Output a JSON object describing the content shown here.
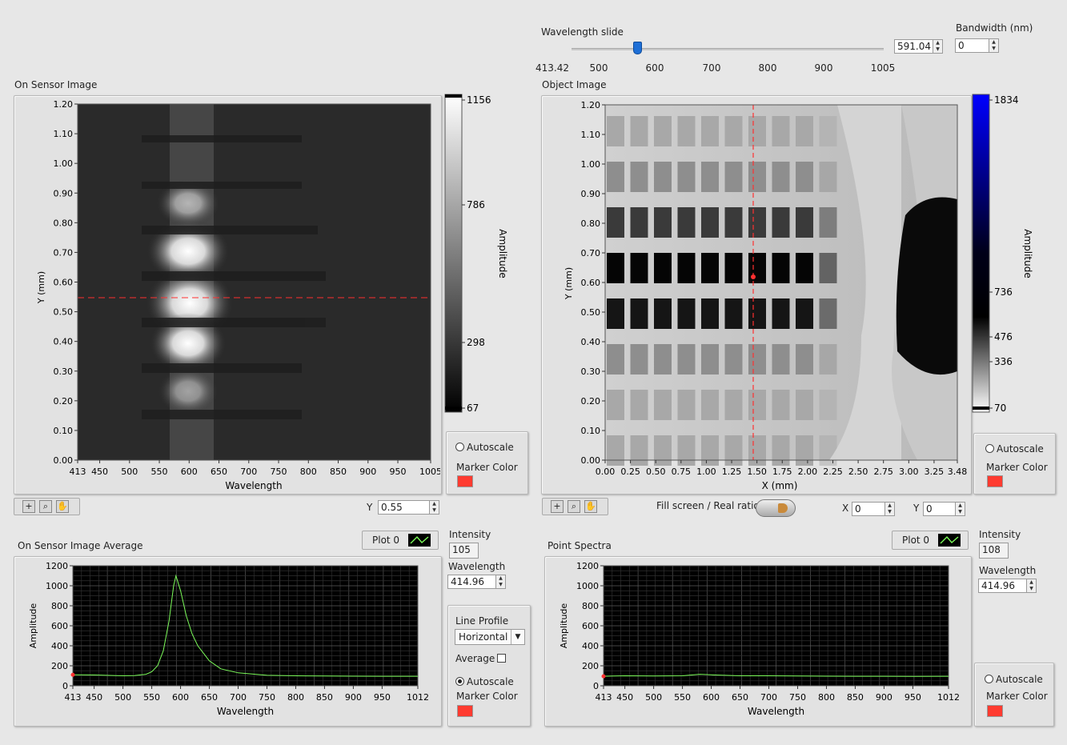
{
  "wavelength_slide": {
    "label": "Wavelength slide",
    "value": "591.04",
    "fraction": 0.21,
    "ticks": [
      "413.42",
      "500",
      "600",
      "700",
      "800",
      "900",
      "1005"
    ]
  },
  "bandwidth": {
    "label": "Bandwidth (nm)",
    "value": "0"
  },
  "sensor_image": {
    "title": "On Sensor Image",
    "ylabel": "Y (mm)",
    "xlabel": "Wavelength",
    "yticks": [
      "1.20",
      "1.10",
      "1.00",
      "0.90",
      "0.80",
      "0.70",
      "0.60",
      "0.50",
      "0.40",
      "0.30",
      "0.20",
      "0.10",
      "0.00"
    ],
    "xticks": [
      "413",
      "450",
      "500",
      "550",
      "600",
      "650",
      "700",
      "750",
      "800",
      "850",
      "900",
      "950",
      "1005"
    ],
    "colorbar_ticks": [
      "1156",
      "786",
      "298",
      "67"
    ],
    "colorbar_label": "Amplitude",
    "autoscale": "Autoscale",
    "marker_color": "Marker Color",
    "y_label": "Y",
    "y_value": "0.55"
  },
  "object_image": {
    "title": "Object Image",
    "ylabel": "Y (mm)",
    "xlabel": "X (mm)",
    "yticks": [
      "1.20",
      "1.10",
      "1.00",
      "0.90",
      "0.80",
      "0.70",
      "0.60",
      "0.50",
      "0.40",
      "0.30",
      "0.20",
      "0.10",
      "0.00"
    ],
    "xticks": [
      "0.00",
      "0.25",
      "0.50",
      "0.75",
      "1.00",
      "1.25",
      "1.50",
      "1.75",
      "2.00",
      "2.25",
      "2.50",
      "2.75",
      "3.00",
      "3.25",
      "3.48"
    ],
    "colorbar_ticks": [
      "1834",
      "736",
      "476",
      "336",
      "70"
    ],
    "colorbar_label": "Amplitude",
    "autoscale": "Autoscale",
    "marker_color": "Marker Color",
    "fill_label": "Fill screen / Real ratio",
    "x_label": "X",
    "x_value": "0",
    "y_label": "Y",
    "y_value": "0"
  },
  "sensor_average": {
    "title": "On Sensor Image Average",
    "plot_legend": "Plot 0",
    "intensity_label": "Intensity",
    "intensity_value": "105",
    "wavelength_label": "Wavelength",
    "wavelength_value": "414.96",
    "line_profile_label": "Line Profile",
    "line_profile_value": "Horizontal",
    "average_label": "Average",
    "autoscale": "Autoscale",
    "marker_color": "Marker Color",
    "ylabel": "Amplitude",
    "xlabel": "Wavelength",
    "yticks": [
      "1200",
      "1000",
      "800",
      "600",
      "400",
      "200",
      "0"
    ],
    "xticks": [
      "413",
      "450",
      "500",
      "550",
      "600",
      "650",
      "700",
      "750",
      "800",
      "850",
      "900",
      "950",
      "1012"
    ]
  },
  "point_spectra": {
    "title": "Point Spectra",
    "plot_legend": "Plot 0",
    "intensity_label": "Intensity",
    "intensity_value": "108",
    "wavelength_label": "Wavelength",
    "wavelength_value": "414.96",
    "autoscale": "Autoscale",
    "marker_color": "Marker Color",
    "ylabel": "Amplitude",
    "xlabel": "Wavelength",
    "yticks": [
      "1200",
      "1000",
      "800",
      "600",
      "400",
      "200",
      "0"
    ],
    "xticks": [
      "413",
      "450",
      "500",
      "550",
      "600",
      "650",
      "700",
      "750",
      "800",
      "850",
      "900",
      "950",
      "1012"
    ]
  },
  "chart_data": [
    {
      "type": "line",
      "name": "On Sensor Image Average",
      "xlabel": "Wavelength",
      "ylabel": "Amplitude",
      "xlim": [
        413,
        1012
      ],
      "ylim": [
        0,
        1200
      ],
      "grid": true,
      "x": [
        413,
        450,
        500,
        520,
        540,
        550,
        560,
        570,
        580,
        588,
        592,
        600,
        610,
        620,
        630,
        650,
        670,
        700,
        750,
        800,
        850,
        900,
        950,
        1012
      ],
      "series": [
        {
          "name": "Plot 0",
          "values": [
            110,
            108,
            100,
            102,
            115,
            140,
            200,
            350,
            650,
            1000,
            1100,
            950,
            700,
            520,
            400,
            250,
            170,
            130,
            105,
            100,
            98,
            96,
            95,
            95
          ]
        }
      ],
      "color": "#7cfc5a"
    },
    {
      "type": "line",
      "name": "Point Spectra",
      "xlabel": "Wavelength",
      "ylabel": "Amplitude",
      "xlim": [
        413,
        1012
      ],
      "ylim": [
        0,
        1200
      ],
      "grid": true,
      "x": [
        413,
        450,
        500,
        550,
        580,
        600,
        650,
        700,
        750,
        800,
        850,
        900,
        950,
        1012
      ],
      "series": [
        {
          "name": "Plot 0",
          "values": [
            95,
            100,
            98,
            100,
            115,
            110,
            100,
            100,
            98,
            96,
            95,
            95,
            94,
            95
          ]
        }
      ],
      "color": "#7cfc5a"
    }
  ]
}
